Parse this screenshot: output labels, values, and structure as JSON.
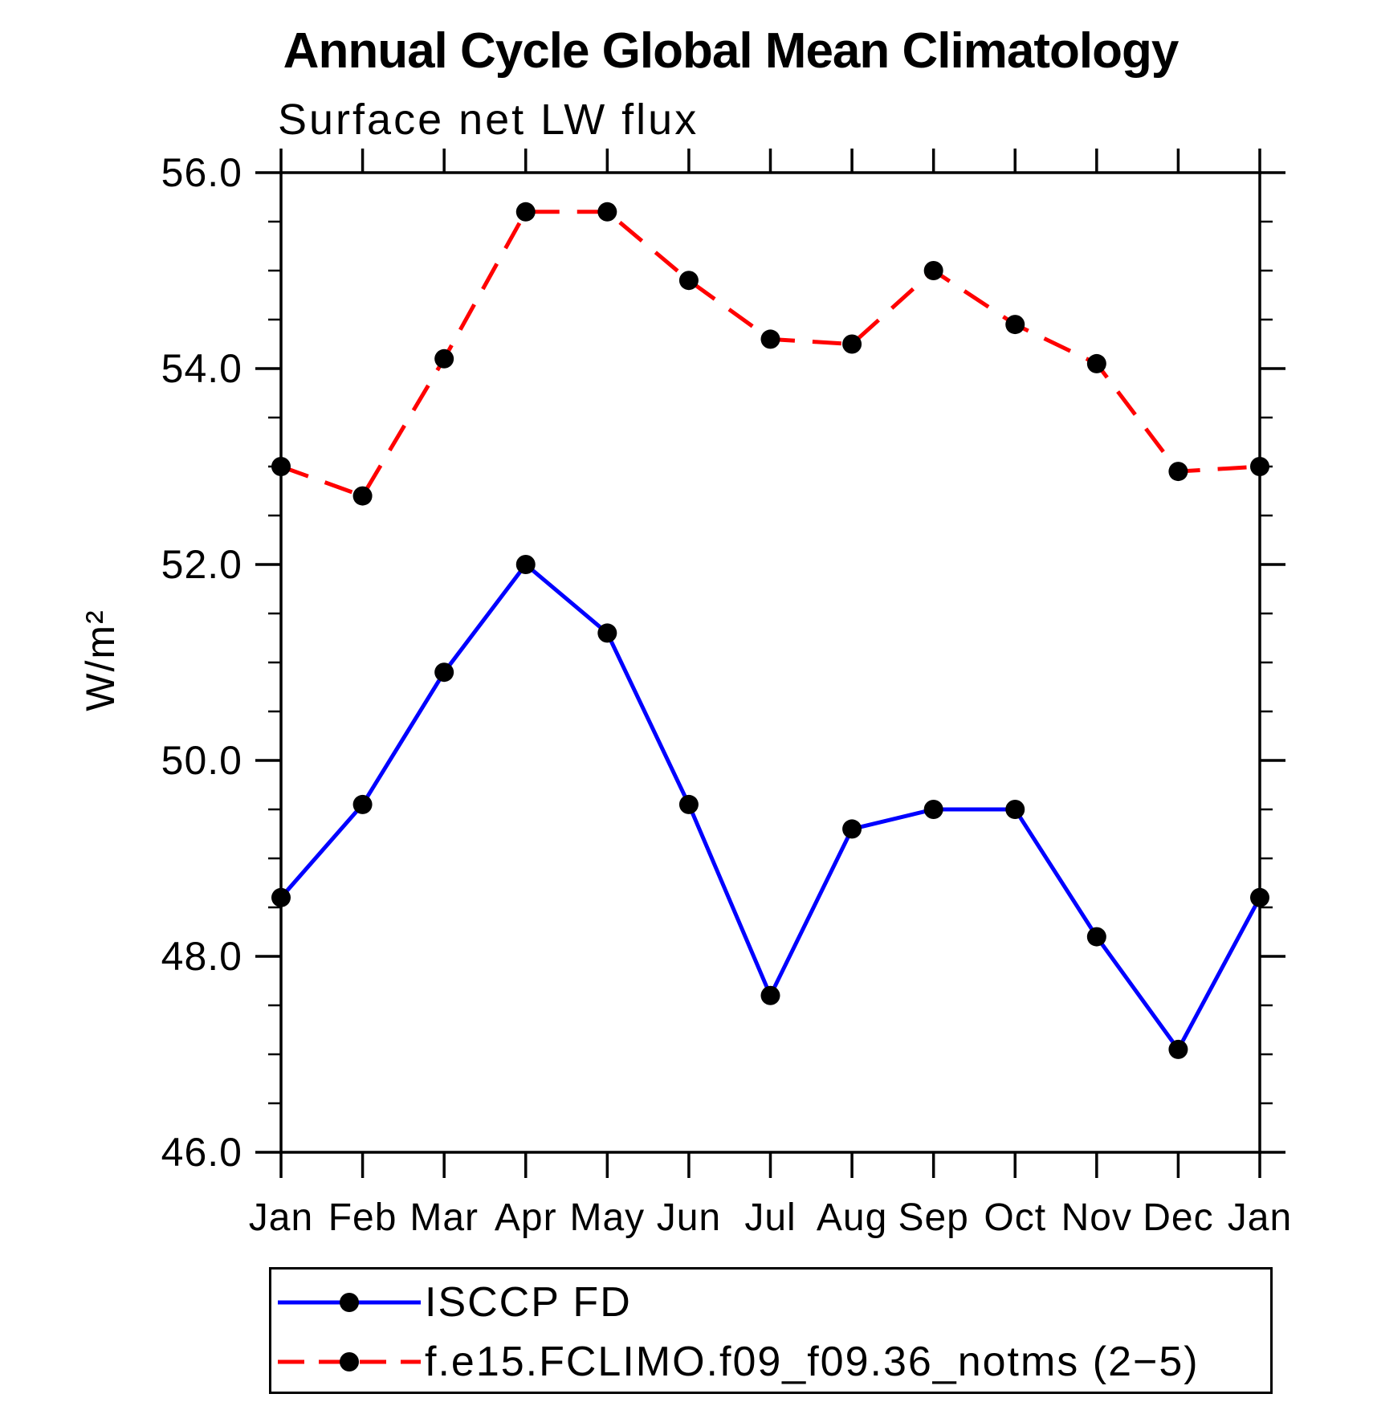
{
  "chart_data": {
    "type": "line",
    "title": "Annual Cycle Global Mean Climatology",
    "subtitle": "Surface net LW flux",
    "ylabel": "W/m²",
    "xlabel": "",
    "ylim": [
      46.0,
      56.0
    ],
    "y_major_ticks": [
      56.0,
      54.0,
      52.0,
      50.0,
      48.0,
      46.0
    ],
    "y_tick_labels": [
      "56.0",
      "54.0",
      "52.0",
      "50.0",
      "48.0",
      "46.0"
    ],
    "y_minor_step": 0.5,
    "grid": "off",
    "legend_position": "bottom-left-box",
    "categories": [
      "Jan",
      "Feb",
      "Mar",
      "Apr",
      "May",
      "Jun",
      "Jul",
      "Aug",
      "Sep",
      "Oct",
      "Nov",
      "Dec",
      "Jan"
    ],
    "series": [
      {
        "name": "ISCCP FD",
        "line_color": "#0000ff",
        "line_style": "solid",
        "marker": "circle",
        "marker_color": "#000000",
        "values": [
          48.6,
          49.55,
          50.9,
          52.0,
          51.3,
          49.55,
          47.6,
          49.3,
          49.5,
          49.5,
          48.2,
          47.05,
          48.6
        ]
      },
      {
        "name": "f.e15.FCLIMO.f09_f09.36_notms (2−5)",
        "line_color": "#ff0000",
        "line_style": "dashed",
        "marker": "circle",
        "marker_color": "#000000",
        "values": [
          53.0,
          52.7,
          54.1,
          55.6,
          55.6,
          54.9,
          54.3,
          54.25,
          55.0,
          54.45,
          54.05,
          52.95,
          53.0
        ]
      }
    ]
  }
}
